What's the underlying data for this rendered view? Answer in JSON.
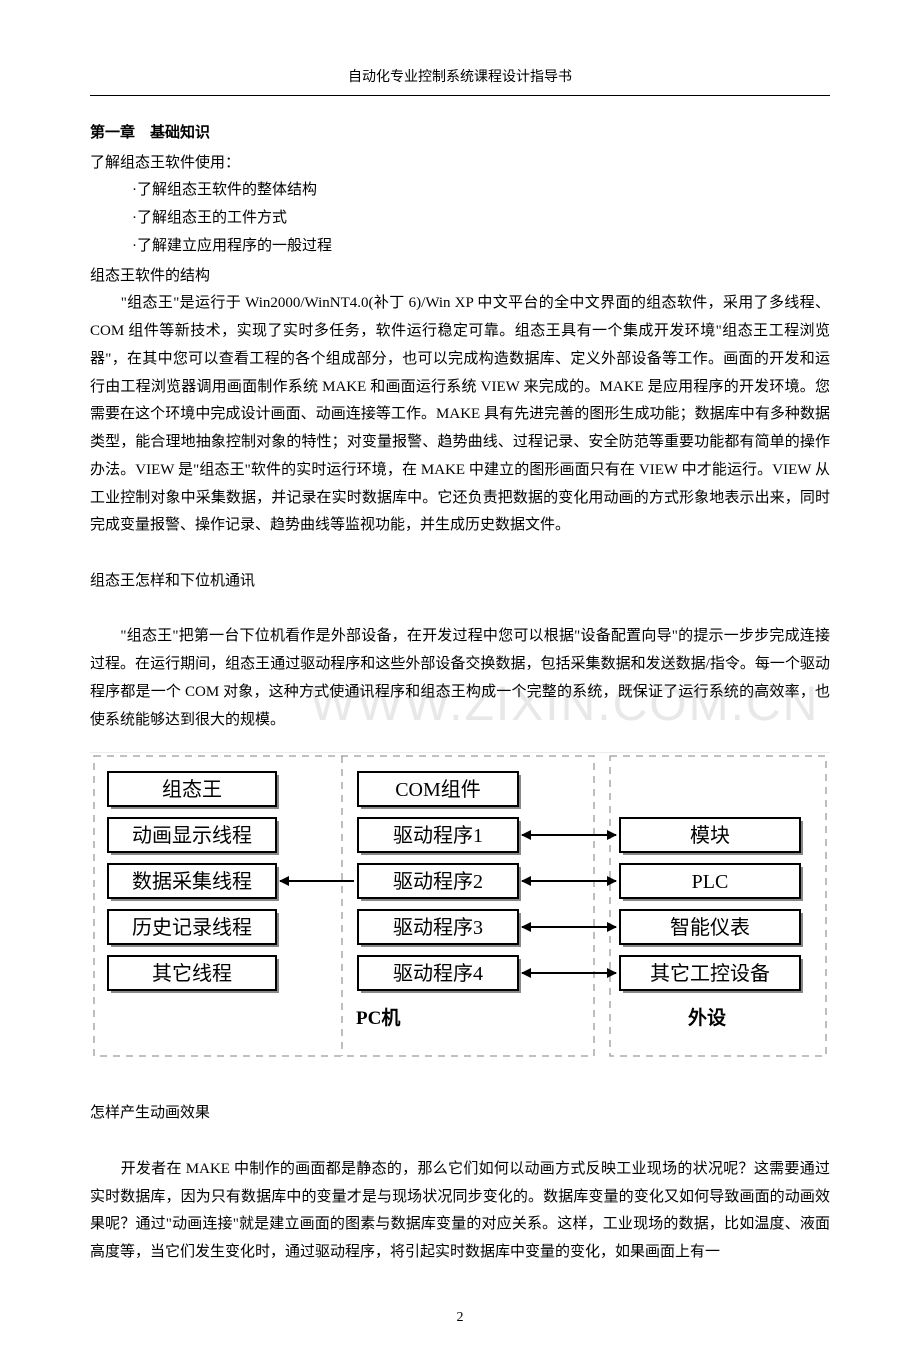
{
  "header": "自动化专业控制系统课程设计指导书",
  "chapter_title": "第一章　基础知识",
  "intro_line": "了解组态王软件使用：",
  "bullets": [
    "·了解组态王软件的整体结构",
    "·了解组态王的工件方式",
    "·了解建立应用程序的一般过程"
  ],
  "sub1_title": "组态王软件的结构",
  "para1": "　　\"组态王\"是运行于 Win2000/WinNT4.0(补丁 6)/Win XP 中文平台的全中文界面的组态软件，采用了多线程、COM 组件等新技术，实现了实时多任务，软件运行稳定可靠。组态王具有一个集成开发环境\"组态王工程浏览器\"，在其中您可以查看工程的各个组成部分，也可以完成构造数据库、定义外部设备等工作。画面的开发和运行由工程浏览器调用画面制作系统 MAKE 和画面运行系统 VIEW 来完成的。MAKE 是应用程序的开发环境。您需要在这个环境中完成设计画面、动画连接等工作。MAKE 具有先进完善的图形生成功能；数据库中有多种数据类型，能合理地抽象控制对象的特性；对变量报警、趋势曲线、过程记录、安全防范等重要功能都有简单的操作办法。VIEW 是\"组态王\"软件的实时运行环境，在 MAKE 中建立的图形画面只有在 VIEW 中才能运行。VIEW 从工业控制对象中采集数据，并记录在实时数据库中。它还负责把数据的变化用动画的方式形象地表示出来，同时完成变量报警、操作记录、趋势曲线等监视功能，并生成历史数据文件。",
  "sub2_title": "组态王怎样和下位机通讯",
  "para2": "　　\"组态王\"把第一台下位机看作是外部设备，在开发过程中您可以根据\"设备配置向导\"的提示一步步完成连接过程。在运行期间，组态王通过驱动程序和这些外部设备交换数据，包括采集数据和发送数据/指令。每一个驱动程序都是一个 COM 对象，这种方式使通讯程序和组态王构成一个完整的系统，既保证了运行系统的高效率，也使系统能够达到很大的规模。",
  "watermark": "WWW.ZIXIN.COM.CN",
  "diagram": {
    "background": "#ffffff",
    "dash_color": "#9a9a9a",
    "line_color": "#000000",
    "box_fill": "#ffffff",
    "box_stroke": "#000000",
    "shadow_color": "#888888",
    "font_family": "SimSun, 宋体, serif",
    "font_size_box": 20,
    "font_size_label": 19,
    "col1": {
      "header": "组态王",
      "boxes": [
        "动画显示线程",
        "数据采集线程",
        "历史记录线程",
        "其它线程"
      ],
      "footer": "PC机"
    },
    "col2": {
      "header": "COM组件",
      "boxes": [
        "驱动程序1",
        "驱动程序2",
        "驱动程序3",
        "驱动程序4"
      ]
    },
    "col3": {
      "boxes": [
        "模块",
        "PLC",
        "智能仪表",
        "其它工控设备"
      ],
      "footer": "外设"
    },
    "arrows": [
      {
        "from": "c1r0",
        "to": "c2r1",
        "type": "single"
      },
      {
        "from": "c2r1",
        "to": "c1r1",
        "type": "single"
      },
      {
        "from": "c2r0",
        "to": "c3r0",
        "type": "double"
      },
      {
        "from": "c2r1",
        "to": "c3r1",
        "type": "double"
      },
      {
        "from": "c2r2",
        "to": "c3r2",
        "type": "double"
      },
      {
        "from": "c2r3",
        "to": "c3r3",
        "type": "double"
      }
    ]
  },
  "sub3_title": "怎样产生动画效果",
  "para3": "　　开发者在 MAKE 中制作的画面都是静态的，那么它们如何以动画方式反映工业现场的状况呢？这需要通过实时数据库，因为只有数据库中的变量才是与现场状况同步变化的。数据库变量的变化又如何导致画面的动画效果呢？通过\"动画连接\"就是建立画面的图素与数据库变量的对应关系。这样，工业现场的数据，比如温度、液面高度等，当它们发生变化时，通过驱动程序，将引起实时数据库中变量的变化，如果画面上有一",
  "page_number": "2"
}
